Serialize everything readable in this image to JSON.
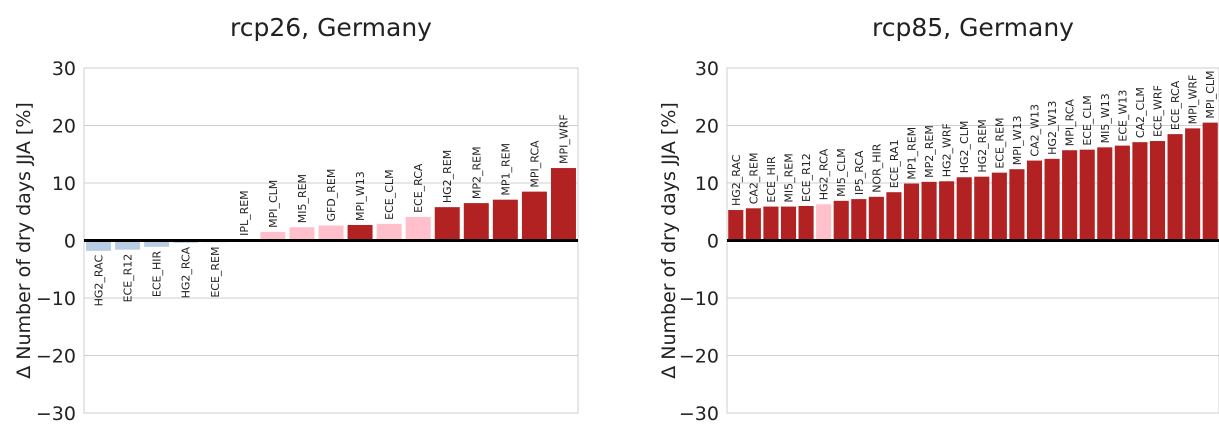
{
  "chart_data": [
    {
      "type": "bar",
      "title": "rcp26, Germany",
      "ylabel": "Δ Number of dry days JJA [%]",
      "ylim": [
        -30,
        30
      ],
      "yticks": [
        "−30",
        "−20",
        "−10",
        "0",
        "10",
        "20",
        "30"
      ],
      "yticks_values": [
        -30,
        -20,
        -10,
        0,
        10,
        20,
        30
      ],
      "grid": true,
      "categories": [
        "HG2_RAC",
        "ECE_R12",
        "ECE_HIR",
        "HG2_RCA",
        "ECE_REM",
        "IPL_REM",
        "MPI_CLM",
        "MI5_REM",
        "GFD_REM",
        "MPI_W13",
        "ECE_CLM",
        "ECE_RCA",
        "HG2_REM",
        "MP2_REM",
        "MP1_REM",
        "MPI_RCA",
        "MPI_WRF"
      ],
      "values": [
        -1.8,
        -1.6,
        -1.1,
        -0.4,
        -0.3,
        0.1,
        1.5,
        2.3,
        2.6,
        2.7,
        2.9,
        4.1,
        5.8,
        6.5,
        7.1,
        8.5,
        12.6
      ],
      "colors": [
        "#b8cce4",
        "#b8cce4",
        "#b8cce4",
        "#b8cce4",
        "#b8cce4",
        "#ffc0cb",
        "#ffc0cb",
        "#ffc0cb",
        "#ffc0cb",
        "#b22222",
        "#ffc0cb",
        "#ffc0cb",
        "#b22222",
        "#b22222",
        "#b22222",
        "#b22222",
        "#b22222"
      ]
    },
    {
      "type": "bar",
      "title": "rcp85, Germany",
      "ylabel": "Δ Number of dry days JJA [%]",
      "ylim": [
        -30,
        30
      ],
      "yticks": [
        "−30",
        "−20",
        "−10",
        "0",
        "10",
        "20",
        "30"
      ],
      "yticks_values": [
        -30,
        -20,
        -10,
        0,
        10,
        20,
        30
      ],
      "grid": true,
      "categories": [
        "HG2_RAC",
        "CA2_REM",
        "ECE_HIR",
        "MI5_REM",
        "ECE_R12",
        "HG2_RCA",
        "MI5_CLM",
        "IP5_RCA",
        "NOR_HIR",
        "ECE_RA1",
        "MP1_REM",
        "MP2_REM",
        "HG2_WRF",
        "HG2_CLM",
        "HG2_REM",
        "ECE_REM",
        "MPI_W13",
        "CA2_W13",
        "HG2_W13",
        "MPI_RCA",
        "ECE_CLM",
        "MI5_W13",
        "ECE_W13",
        "CA2_CLM",
        "ECE_WRF",
        "ECE_RCA",
        "MPI_WRF",
        "MPI_CLM"
      ],
      "values": [
        5.3,
        5.6,
        5.9,
        5.9,
        6.0,
        6.3,
        6.9,
        7.2,
        7.6,
        8.4,
        9.9,
        10.2,
        10.3,
        11.0,
        11.1,
        11.8,
        12.4,
        13.9,
        14.2,
        15.7,
        15.8,
        16.2,
        16.5,
        17.1,
        17.3,
        18.5,
        19.5,
        20.5
      ],
      "colors": [
        "#b22222",
        "#b22222",
        "#b22222",
        "#b22222",
        "#b22222",
        "#ffc0cb",
        "#b22222",
        "#b22222",
        "#b22222",
        "#b22222",
        "#b22222",
        "#b22222",
        "#b22222",
        "#b22222",
        "#b22222",
        "#b22222",
        "#b22222",
        "#b22222",
        "#b22222",
        "#b22222",
        "#b22222",
        "#b22222",
        "#b22222",
        "#b22222",
        "#b22222",
        "#b22222",
        "#b22222",
        "#b22222"
      ]
    }
  ]
}
